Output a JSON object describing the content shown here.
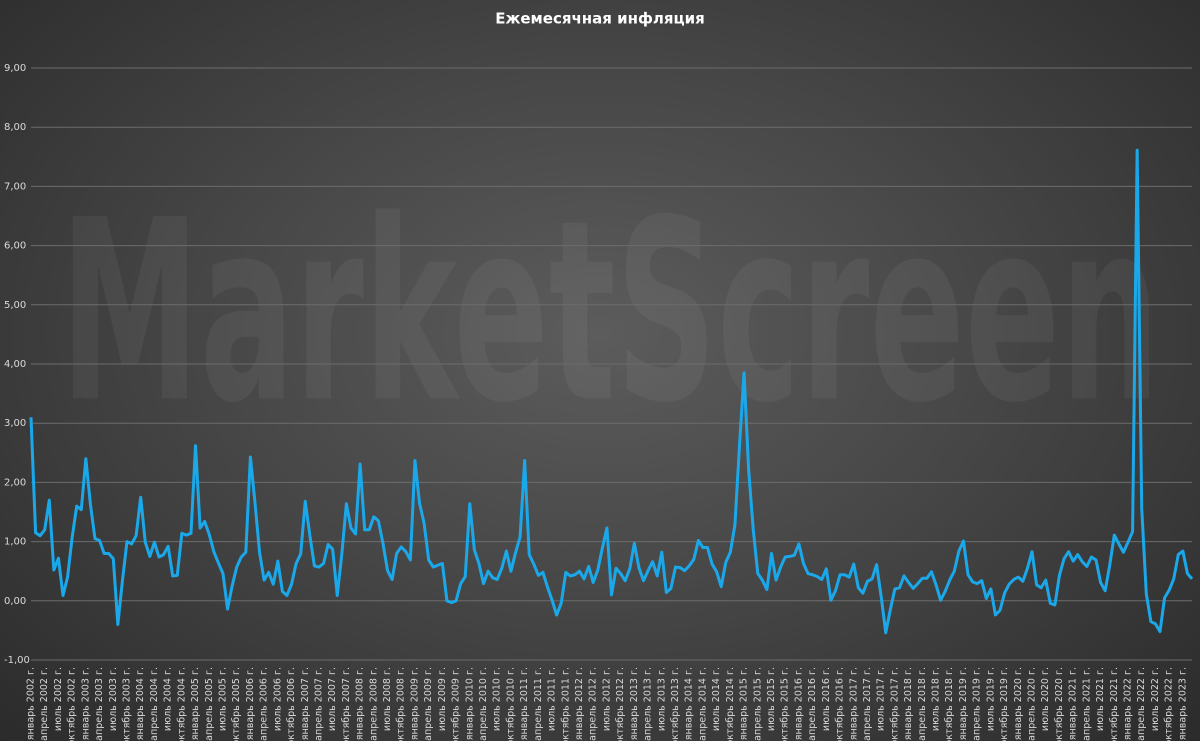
{
  "chart_data": {
    "type": "line",
    "title": "Ежемесячная инфляция",
    "watermark": "MarketScreen",
    "categories": [
      "январь 2002 г.",
      null,
      null,
      "апрель 2002 г.",
      null,
      null,
      "июль 2002 г.",
      null,
      null,
      "октябрь 2002 г.",
      null,
      null,
      "январь 2003 г.",
      null,
      null,
      "апрель 2003 г.",
      null,
      null,
      "июль 2003 г.",
      null,
      null,
      "октябрь 2003 г.",
      null,
      null,
      "январь 2004 г.",
      null,
      null,
      "апрель 2004 г.",
      null,
      null,
      "июль 2004 г.",
      null,
      null,
      "октябрь 2004 г.",
      null,
      null,
      "январь 2005 г.",
      null,
      null,
      "апрель 2005 г.",
      null,
      null,
      "июль 2005 г.",
      null,
      null,
      "октябрь 2005 г.",
      null,
      null,
      "январь 2006 г.",
      null,
      null,
      "апрель 2006 г.",
      null,
      null,
      "июль 2006 г.",
      null,
      null,
      "октябрь 2006 г.",
      null,
      null,
      "январь 2007 г.",
      null,
      null,
      "апрель 2007 г.",
      null,
      null,
      "июль 2007 г.",
      null,
      null,
      "октябрь 2007 г.",
      null,
      null,
      "январь 2008 г.",
      null,
      null,
      "апрель 2008 г.",
      null,
      null,
      "июль 2008 г.",
      null,
      null,
      "октябрь 2008 г.",
      null,
      null,
      "январь 2009 г.",
      null,
      null,
      "апрель 2009 г.",
      null,
      null,
      "июль 2009 г.",
      null,
      null,
      "октябрь 2009 г.",
      null,
      null,
      "январь 2010 г.",
      null,
      null,
      "апрель 2010 г.",
      null,
      null,
      "июль 2010 г.",
      null,
      null,
      "октябрь 2010 г.",
      null,
      null,
      "январь 2011 г.",
      null,
      null,
      "апрель 2011 г.",
      null,
      null,
      "июль 2011 г.",
      null,
      null,
      "октябрь 2011 г.",
      null,
      null,
      "январь 2012 г.",
      null,
      null,
      "апрель 2012 г.",
      null,
      null,
      "июль 2012 г.",
      null,
      null,
      "октябрь 2012 г.",
      null,
      null,
      "январь 2013 г.",
      null,
      null,
      "апрель 2013 г.",
      null,
      null,
      "июль 2013 г.",
      null,
      null,
      "октябрь 2013 г.",
      null,
      null,
      "январь 2014 г.",
      null,
      null,
      "апрель 2014 г.",
      null,
      null,
      "июль 2014 г.",
      null,
      null,
      "октябрь 2014 г.",
      null,
      null,
      "январь 2015 г.",
      null,
      null,
      "апрель 2015 г.",
      null,
      null,
      "июль 2015 г.",
      null,
      null,
      "октябрь 2015 г.",
      null,
      null,
      "январь 2016 г.",
      null,
      null,
      "апрель 2016 г.",
      null,
      null,
      "июль 2016 г.",
      null,
      null,
      "октябрь 2016 г.",
      null,
      null,
      "январь 2017 г.",
      null,
      null,
      "апрель 2017 г.",
      null,
      null,
      "июль 2017 г.",
      null,
      null,
      "октябрь 2017 г.",
      null,
      null,
      "январь 2018 г.",
      null,
      null,
      "апрель 2018 г.",
      null,
      null,
      "июль 2018 г.",
      null,
      null,
      "октябрь 2018 г.",
      null,
      null,
      "январь 2019 г.",
      null,
      null,
      "апрель 2019 г.",
      null,
      null,
      "июль 2019 г.",
      null,
      null,
      "октябрь 2019 г.",
      null,
      null,
      "январь 2020 г.",
      null,
      null,
      "апрель 2020 г.",
      null,
      null,
      "июль 2020 г.",
      null,
      null,
      "октябрь 2020 г.",
      null,
      null,
      "январь 2021 г.",
      null,
      null,
      "апрель 2021 г.",
      null,
      null,
      "июль 2021 г.",
      null,
      null,
      "октябрь 2021 г.",
      null,
      null,
      "январь 2022 г.",
      null,
      null,
      "апрель 2022 г.",
      null,
      null,
      "июль 2022 г.",
      null,
      null,
      "октябрь 2022 г.",
      null,
      null,
      "январь 2023 г.",
      null,
      null
    ],
    "series": [
      {
        "color": "#1ba8ea",
        "values": [
          3.1,
          1.15,
          1.1,
          1.2,
          1.7,
          0.52,
          0.72,
          0.09,
          0.4,
          1.07,
          1.6,
          1.54,
          2.4,
          1.63,
          1.05,
          1.02,
          0.8,
          0.8,
          0.71,
          -0.4,
          0.34,
          1.0,
          0.96,
          1.1,
          1.75,
          0.99,
          0.75,
          0.99,
          0.74,
          0.78,
          0.92,
          0.42,
          0.43,
          1.14,
          1.11,
          1.14,
          2.62,
          1.23,
          1.34,
          1.12,
          0.83,
          0.64,
          0.46,
          -0.14,
          0.25,
          0.57,
          0.74,
          0.82,
          2.43,
          1.66,
          0.82,
          0.35,
          0.48,
          0.28,
          0.67,
          0.16,
          0.09,
          0.28,
          0.63,
          0.79,
          1.68,
          1.11,
          0.59,
          0.57,
          0.63,
          0.95,
          0.87,
          0.09,
          0.79,
          1.64,
          1.23,
          1.13,
          2.31,
          1.2,
          1.2,
          1.42,
          1.35,
          0.97,
          0.51,
          0.36,
          0.8,
          0.91,
          0.83,
          0.69,
          2.37,
          1.65,
          1.31,
          0.69,
          0.57,
          0.6,
          0.63,
          0.0,
          -0.03,
          0.0,
          0.29,
          0.41,
          1.64,
          0.86,
          0.63,
          0.29,
          0.5,
          0.39,
          0.36,
          0.55,
          0.84,
          0.5,
          0.81,
          1.08,
          2.37,
          0.78,
          0.62,
          0.43,
          0.48,
          0.23,
          0.01,
          -0.24,
          -0.04,
          0.48,
          0.42,
          0.44,
          0.5,
          0.37,
          0.58,
          0.31,
          0.52,
          0.89,
          1.23,
          0.1,
          0.55,
          0.46,
          0.34,
          0.54,
          0.97,
          0.56,
          0.34,
          0.51,
          0.66,
          0.42,
          0.82,
          0.14,
          0.21,
          0.57,
          0.56,
          0.51,
          0.59,
          0.7,
          1.02,
          0.9,
          0.9,
          0.62,
          0.49,
          0.24,
          0.65,
          0.82,
          1.28,
          2.62,
          3.85,
          2.22,
          1.21,
          0.46,
          0.35,
          0.19,
          0.8,
          0.35,
          0.57,
          0.74,
          0.75,
          0.77,
          0.96,
          0.63,
          0.46,
          0.44,
          0.41,
          0.36,
          0.54,
          0.01,
          0.17,
          0.44,
          0.44,
          0.4,
          0.62,
          0.22,
          0.13,
          0.33,
          0.37,
          0.61,
          0.07,
          -0.54,
          -0.15,
          0.2,
          0.22,
          0.42,
          0.31,
          0.21,
          0.29,
          0.38,
          0.38,
          0.49,
          0.27,
          0.01,
          0.16,
          0.35,
          0.5,
          0.84,
          1.01,
          0.44,
          0.32,
          0.29,
          0.34,
          0.04,
          0.2,
          -0.24,
          -0.16,
          0.13,
          0.28,
          0.36,
          0.4,
          0.33,
          0.55,
          0.83,
          0.27,
          0.22,
          0.35,
          -0.04,
          -0.07,
          0.43,
          0.71,
          0.83,
          0.67,
          0.78,
          0.66,
          0.58,
          0.74,
          0.69,
          0.31,
          0.17,
          0.6,
          1.11,
          0.96,
          0.82,
          0.99,
          1.17,
          7.61,
          1.56,
          0.12,
          -0.35,
          -0.39,
          -0.52,
          0.05,
          0.18,
          0.37,
          0.78,
          0.84,
          0.46,
          0.37
        ]
      }
    ],
    "ylim": [
      -1,
      9
    ],
    "yticks": [
      {
        "value": -1,
        "label": "-1,00"
      },
      {
        "value": 0,
        "label": "0,00"
      },
      {
        "value": 1,
        "label": "1,00"
      },
      {
        "value": 2,
        "label": "2,00"
      },
      {
        "value": 3,
        "label": "3,00"
      },
      {
        "value": 4,
        "label": "4,00"
      },
      {
        "value": 5,
        "label": "5,00"
      },
      {
        "value": 6,
        "label": "6,00"
      },
      {
        "value": 7,
        "label": "7,00"
      },
      {
        "value": 8,
        "label": "8,00"
      },
      {
        "value": 9,
        "label": "9,00"
      }
    ],
    "grid": true
  }
}
